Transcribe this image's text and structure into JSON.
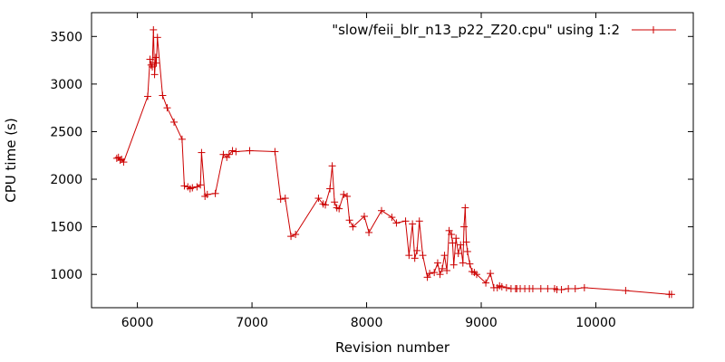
{
  "chart_data": {
    "type": "line",
    "title": "",
    "xlabel": "Revision number",
    "ylabel": "CPU time (s)",
    "xlim": [
      5600,
      10850
    ],
    "ylim": [
      650,
      3750
    ],
    "xticks": [
      6000,
      7000,
      8000,
      9000,
      10000
    ],
    "yticks": [
      1000,
      1500,
      2000,
      2500,
      3000,
      3500
    ],
    "grid": false,
    "legend": {
      "position": "top-right"
    },
    "series": [
      {
        "name": "\"slow/feii_blr_n13_p22_Z20.cpu\" using 1:2",
        "color": "#cc0000",
        "marker": "plus",
        "x": [
          5820,
          5835,
          5850,
          5862,
          5880,
          6090,
          6110,
          6120,
          6130,
          6140,
          6150,
          6160,
          6165,
          6175,
          6220,
          6260,
          6320,
          6390,
          6410,
          6440,
          6460,
          6480,
          6520,
          6550,
          6560,
          6590,
          6610,
          6680,
          6750,
          6780,
          6800,
          6830,
          6860,
          6980,
          7200,
          7250,
          7290,
          7340,
          7380,
          7580,
          7620,
          7640,
          7680,
          7700,
          7720,
          7740,
          7760,
          7800,
          7830,
          7850,
          7880,
          7980,
          8020,
          8130,
          8220,
          8260,
          8340,
          8370,
          8400,
          8420,
          8440,
          8460,
          8490,
          8530,
          8550,
          8590,
          8620,
          8640,
          8660,
          8680,
          8700,
          8720,
          8740,
          8750,
          8760,
          8780,
          8800,
          8820,
          8840,
          8850,
          8860,
          8870,
          8880,
          8900,
          8920,
          8940,
          8960,
          9040,
          9080,
          9110,
          9140,
          9160,
          9180,
          9220,
          9260,
          9300,
          9310,
          9340,
          9380,
          9420,
          9450,
          9520,
          9580,
          9640,
          9660,
          9700,
          9760,
          9820,
          9900,
          10260,
          10640,
          10660
        ],
        "y": [
          2220,
          2230,
          2200,
          2210,
          2180,
          2870,
          3260,
          3200,
          3180,
          3570,
          3100,
          3280,
          3220,
          3490,
          2880,
          2750,
          2600,
          2420,
          1930,
          1920,
          1900,
          1910,
          1920,
          1940,
          2280,
          1820,
          1840,
          1850,
          2260,
          2230,
          2260,
          2300,
          2290,
          2300,
          2290,
          1790,
          1800,
          1400,
          1420,
          1800,
          1740,
          1730,
          1900,
          2140,
          1760,
          1700,
          1690,
          1840,
          1820,
          1570,
          1500,
          1610,
          1440,
          1670,
          1600,
          1540,
          1560,
          1200,
          1530,
          1170,
          1250,
          1560,
          1200,
          970,
          1010,
          1020,
          1120,
          1000,
          1060,
          1200,
          1040,
          1460,
          1420,
          1330,
          1100,
          1380,
          1220,
          1310,
          1120,
          1500,
          1700,
          1340,
          1240,
          1110,
          1030,
          1020,
          1000,
          910,
          1010,
          860,
          860,
          880,
          870,
          860,
          850,
          850,
          850,
          850,
          850,
          850,
          850,
          850,
          850,
          850,
          840,
          840,
          850,
          850,
          860,
          830,
          790,
          790
        ]
      }
    ]
  }
}
